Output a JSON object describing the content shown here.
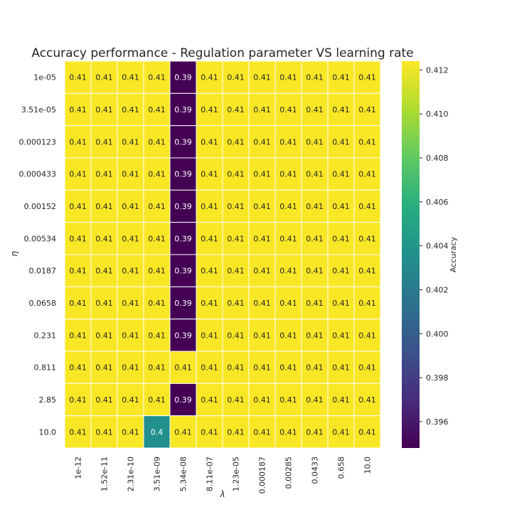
{
  "chart_data": {
    "type": "heatmap",
    "title": "Accuracy performance - Regulation parameter VS learning rate",
    "xlabel": "λ",
    "ylabel": "η",
    "x_categories": [
      "1e-12",
      "1.52e-11",
      "2.31e-10",
      "3.51e-09",
      "5.34e-08",
      "8.11e-07",
      "1.23e-05",
      "0.000187",
      "0.00285",
      "0.0433",
      "0.658",
      "10.0"
    ],
    "y_categories": [
      "1e-05",
      "3.51e-05",
      "0.000123",
      "0.000433",
      "0.00152",
      "0.00534",
      "0.0187",
      "0.0658",
      "0.231",
      "0.811",
      "2.85",
      "10.0"
    ],
    "values": [
      [
        0.4123,
        0.4123,
        0.4123,
        0.4123,
        0.3948,
        0.4123,
        0.4123,
        0.4123,
        0.4123,
        0.4123,
        0.4123,
        0.4123
      ],
      [
        0.4123,
        0.4123,
        0.4123,
        0.4123,
        0.3948,
        0.4123,
        0.4123,
        0.4123,
        0.4123,
        0.4123,
        0.4123,
        0.4123
      ],
      [
        0.4123,
        0.4123,
        0.4123,
        0.4123,
        0.3948,
        0.4123,
        0.4123,
        0.4123,
        0.4123,
        0.4123,
        0.4123,
        0.4123
      ],
      [
        0.4123,
        0.4123,
        0.4123,
        0.4123,
        0.3948,
        0.4123,
        0.4123,
        0.4123,
        0.4123,
        0.4123,
        0.4123,
        0.4123
      ],
      [
        0.4123,
        0.4123,
        0.4123,
        0.4123,
        0.3948,
        0.4123,
        0.4123,
        0.4123,
        0.4123,
        0.4123,
        0.4123,
        0.4123
      ],
      [
        0.4123,
        0.4123,
        0.4123,
        0.4123,
        0.3948,
        0.4123,
        0.4123,
        0.4123,
        0.4123,
        0.4123,
        0.4123,
        0.4123
      ],
      [
        0.4123,
        0.4123,
        0.4123,
        0.4123,
        0.3948,
        0.4123,
        0.4123,
        0.4123,
        0.4123,
        0.4123,
        0.4123,
        0.4123
      ],
      [
        0.4123,
        0.4123,
        0.4123,
        0.4123,
        0.3948,
        0.4123,
        0.4123,
        0.4123,
        0.4123,
        0.4123,
        0.4123,
        0.4123
      ],
      [
        0.4123,
        0.4123,
        0.4123,
        0.4123,
        0.3948,
        0.4123,
        0.4123,
        0.4123,
        0.4123,
        0.4123,
        0.4123,
        0.4123
      ],
      [
        0.4123,
        0.4123,
        0.4123,
        0.4123,
        0.4123,
        0.4123,
        0.4123,
        0.4123,
        0.4123,
        0.4123,
        0.4123,
        0.4123
      ],
      [
        0.4123,
        0.4123,
        0.4123,
        0.4123,
        0.3948,
        0.4123,
        0.4123,
        0.4123,
        0.4123,
        0.4123,
        0.4123,
        0.4123
      ],
      [
        0.4123,
        0.4123,
        0.4123,
        0.4035,
        0.4123,
        0.4123,
        0.4123,
        0.4123,
        0.4123,
        0.4123,
        0.4123,
        0.4123
      ]
    ],
    "annotations": [
      [
        "0.41",
        "0.41",
        "0.41",
        "0.41",
        "0.39",
        "0.41",
        "0.41",
        "0.41",
        "0.41",
        "0.41",
        "0.41",
        "0.41"
      ],
      [
        "0.41",
        "0.41",
        "0.41",
        "0.41",
        "0.39",
        "0.41",
        "0.41",
        "0.41",
        "0.41",
        "0.41",
        "0.41",
        "0.41"
      ],
      [
        "0.41",
        "0.41",
        "0.41",
        "0.41",
        "0.39",
        "0.41",
        "0.41",
        "0.41",
        "0.41",
        "0.41",
        "0.41",
        "0.41"
      ],
      [
        "0.41",
        "0.41",
        "0.41",
        "0.41",
        "0.39",
        "0.41",
        "0.41",
        "0.41",
        "0.41",
        "0.41",
        "0.41",
        "0.41"
      ],
      [
        "0.41",
        "0.41",
        "0.41",
        "0.41",
        "0.39",
        "0.41",
        "0.41",
        "0.41",
        "0.41",
        "0.41",
        "0.41",
        "0.41"
      ],
      [
        "0.41",
        "0.41",
        "0.41",
        "0.41",
        "0.39",
        "0.41",
        "0.41",
        "0.41",
        "0.41",
        "0.41",
        "0.41",
        "0.41"
      ],
      [
        "0.41",
        "0.41",
        "0.41",
        "0.41",
        "0.39",
        "0.41",
        "0.41",
        "0.41",
        "0.41",
        "0.41",
        "0.41",
        "0.41"
      ],
      [
        "0.41",
        "0.41",
        "0.41",
        "0.41",
        "0.39",
        "0.41",
        "0.41",
        "0.41",
        "0.41",
        "0.41",
        "0.41",
        "0.41"
      ],
      [
        "0.41",
        "0.41",
        "0.41",
        "0.41",
        "0.39",
        "0.41",
        "0.41",
        "0.41",
        "0.41",
        "0.41",
        "0.41",
        "0.41"
      ],
      [
        "0.41",
        "0.41",
        "0.41",
        "0.41",
        "0.41",
        "0.41",
        "0.41",
        "0.41",
        "0.41",
        "0.41",
        "0.41",
        "0.41"
      ],
      [
        "0.41",
        "0.41",
        "0.41",
        "0.41",
        "0.39",
        "0.41",
        "0.41",
        "0.41",
        "0.41",
        "0.41",
        "0.41",
        "0.41"
      ],
      [
        "0.41",
        "0.41",
        "0.41",
        "0.4",
        "0.41",
        "0.41",
        "0.41",
        "0.41",
        "0.41",
        "0.41",
        "0.41",
        "0.41"
      ]
    ],
    "colorbar": {
      "label": "Accuracy",
      "range": [
        0.3948,
        0.4124
      ],
      "ticks": [
        "0.396",
        "0.398",
        "0.400",
        "0.402",
        "0.404",
        "0.406",
        "0.408",
        "0.410",
        "0.412"
      ],
      "colormap": "viridis"
    },
    "grid": false,
    "cell_border_color": "#ffffff"
  }
}
